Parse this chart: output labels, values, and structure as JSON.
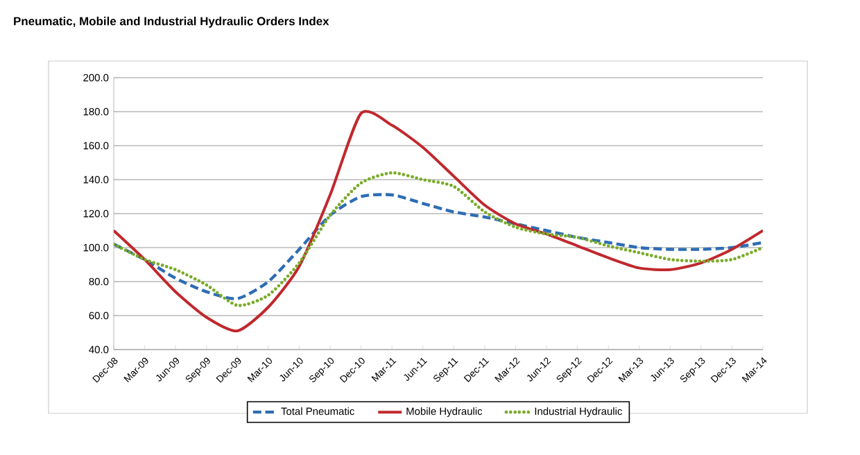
{
  "chart_data": {
    "type": "line",
    "title": "Pneumatic, Mobile and Industrial Hydraulic Orders Index",
    "categories": [
      "Dec-08",
      "Mar-09",
      "Jun-09",
      "Sep-09",
      "Dec-09",
      "Mar-10",
      "Jun-10",
      "Sep-10",
      "Dec-10",
      "Mar-11",
      "Jun-11",
      "Sep-11",
      "Dec-11",
      "Mar-12",
      "Jun-12",
      "Sep-12",
      "Dec-12",
      "Mar-13",
      "Jun-13",
      "Sep-13",
      "Dec-13",
      "Mar-14"
    ],
    "series": [
      {
        "name": "Total Pneumatic",
        "color": "#2e6db4",
        "line_style": "dashed",
        "values": [
          102,
          93,
          82,
          74,
          70,
          80,
          99,
          119,
          130,
          131,
          126,
          121,
          118,
          114,
          110,
          106,
          103,
          100,
          99,
          99,
          100,
          103
        ]
      },
      {
        "name": "Mobile Hydraulic",
        "color": "#c0282d",
        "line_style": "solid",
        "values": [
          110,
          93,
          74,
          59,
          51,
          65,
          89,
          131,
          179,
          172,
          159,
          142,
          125,
          114,
          108,
          101,
          94,
          88,
          87,
          91,
          99,
          110
        ]
      },
      {
        "name": "Industrial Hydraulic",
        "color": "#7aab2a",
        "line_style": "dotted",
        "values": [
          102,
          93,
          87,
          78,
          66,
          72,
          91,
          119,
          138,
          144,
          140,
          136,
          121,
          112,
          108,
          106,
          101,
          97,
          93,
          92,
          93,
          100
        ]
      }
    ],
    "ylim": [
      40,
      200
    ],
    "yticks": [
      {
        "value": 40,
        "label": "40.0"
      },
      {
        "value": 60,
        "label": "60.0"
      },
      {
        "value": 80,
        "label": "80.0"
      },
      {
        "value": 100,
        "label": "100.0"
      },
      {
        "value": 120,
        "label": "120.0"
      },
      {
        "value": 140,
        "label": "140.0"
      },
      {
        "value": 160,
        "label": "160.0"
      },
      {
        "value": 180,
        "label": "180.0"
      },
      {
        "value": 200,
        "label": "200.0"
      }
    ],
    "grid": "y",
    "legend": "bottom",
    "marker": "none"
  }
}
